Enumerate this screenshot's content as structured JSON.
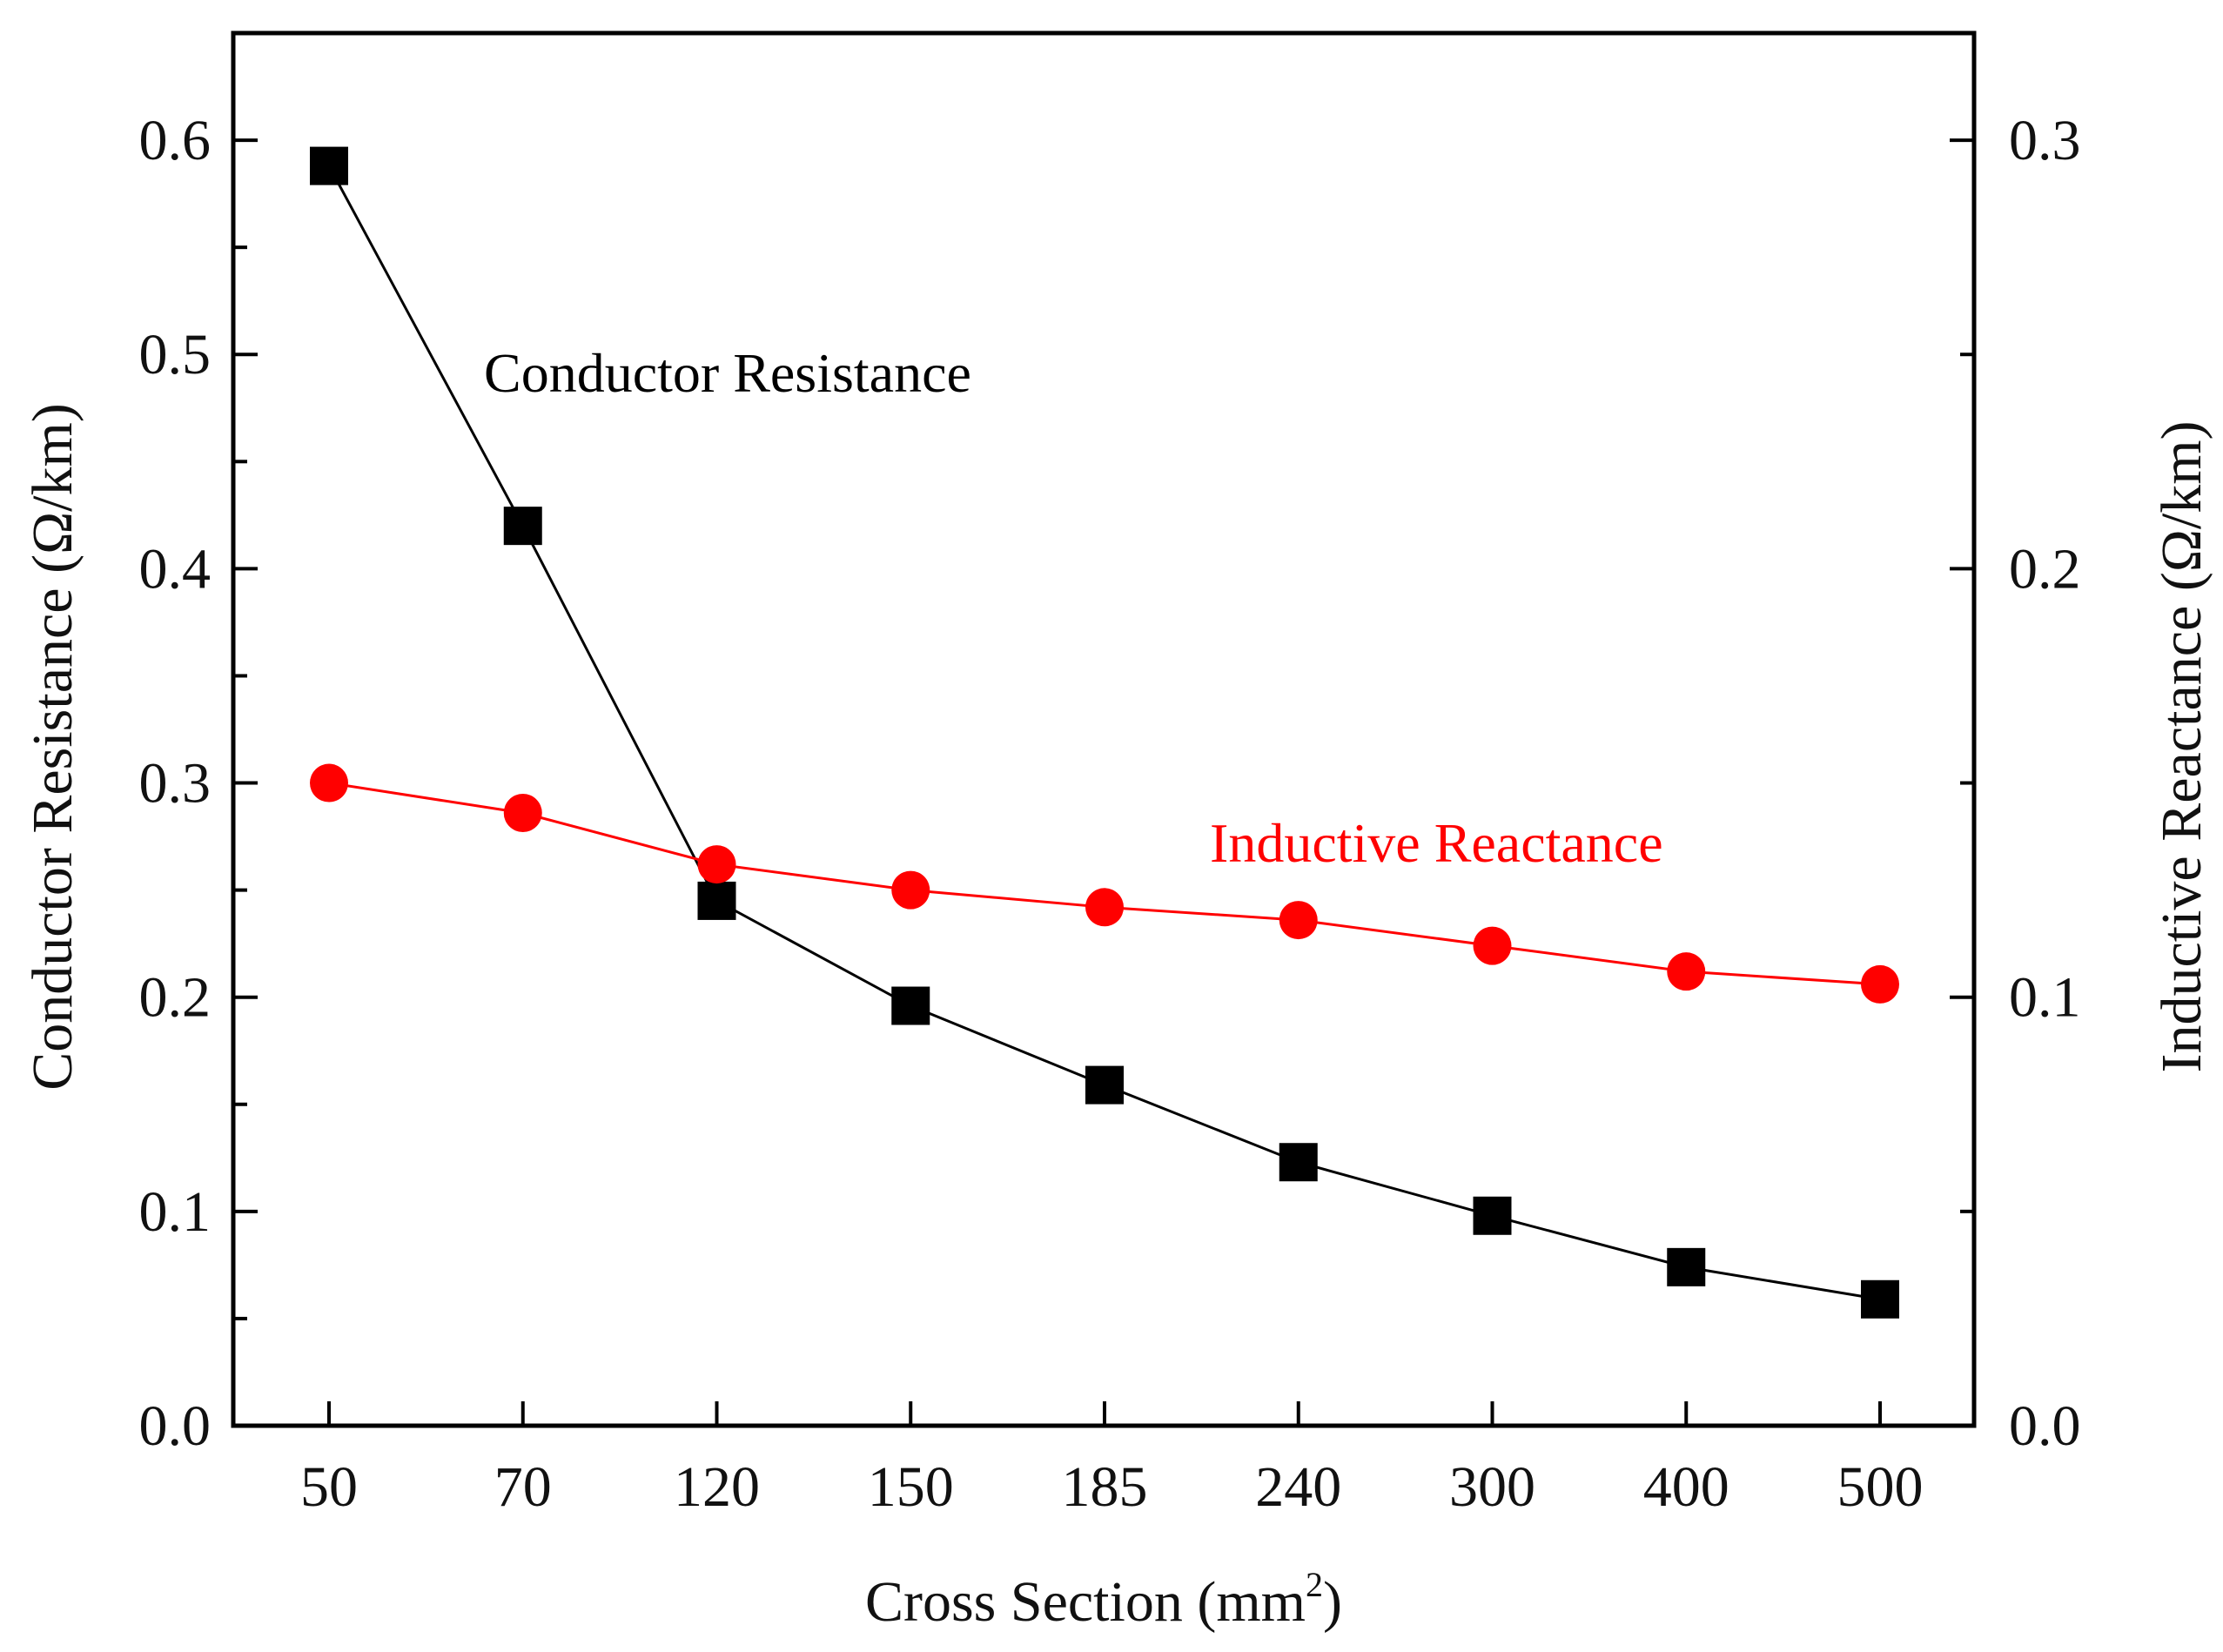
{
  "chart_data": {
    "type": "line",
    "categories": [
      "50",
      "70",
      "120",
      "150",
      "185",
      "240",
      "300",
      "400",
      "500"
    ],
    "series": [
      {
        "name": "Conductor Resistance",
        "axis": "left",
        "color": "#000000",
        "marker": "square",
        "values": [
          0.588,
          0.42,
          0.245,
          0.196,
          0.159,
          0.123,
          0.098,
          0.074,
          0.059
        ]
      },
      {
        "name": "Inductive Reactance",
        "axis": "right",
        "color": "#ff0000",
        "marker": "circle",
        "values": [
          0.15,
          0.143,
          0.131,
          0.125,
          0.121,
          0.118,
          0.112,
          0.106,
          0.103
        ]
      }
    ],
    "xlabel": "Cross Section (mm",
    "xlabel_sup": "2",
    "xlabel_end": ")",
    "ylabel_left": "Conductor  Resistance (Ω/km)",
    "ylabel_right": "Inductive Reactance (Ω/km)",
    "ylim_left": [
      0,
      0.65
    ],
    "ylim_right": [
      0,
      0.325
    ],
    "yticks_left": [
      "0.0",
      "0.1",
      "0.2",
      "0.3",
      "0.4",
      "0.5",
      "0.6"
    ],
    "yticks_right": [
      "0.0",
      "0.1",
      "0.2",
      "0.3"
    ],
    "annotations": [
      {
        "text": "Conductor  Resistance",
        "color": "#000000"
      },
      {
        "text": "Inductive Reactance",
        "color": "#ff0000"
      }
    ]
  }
}
